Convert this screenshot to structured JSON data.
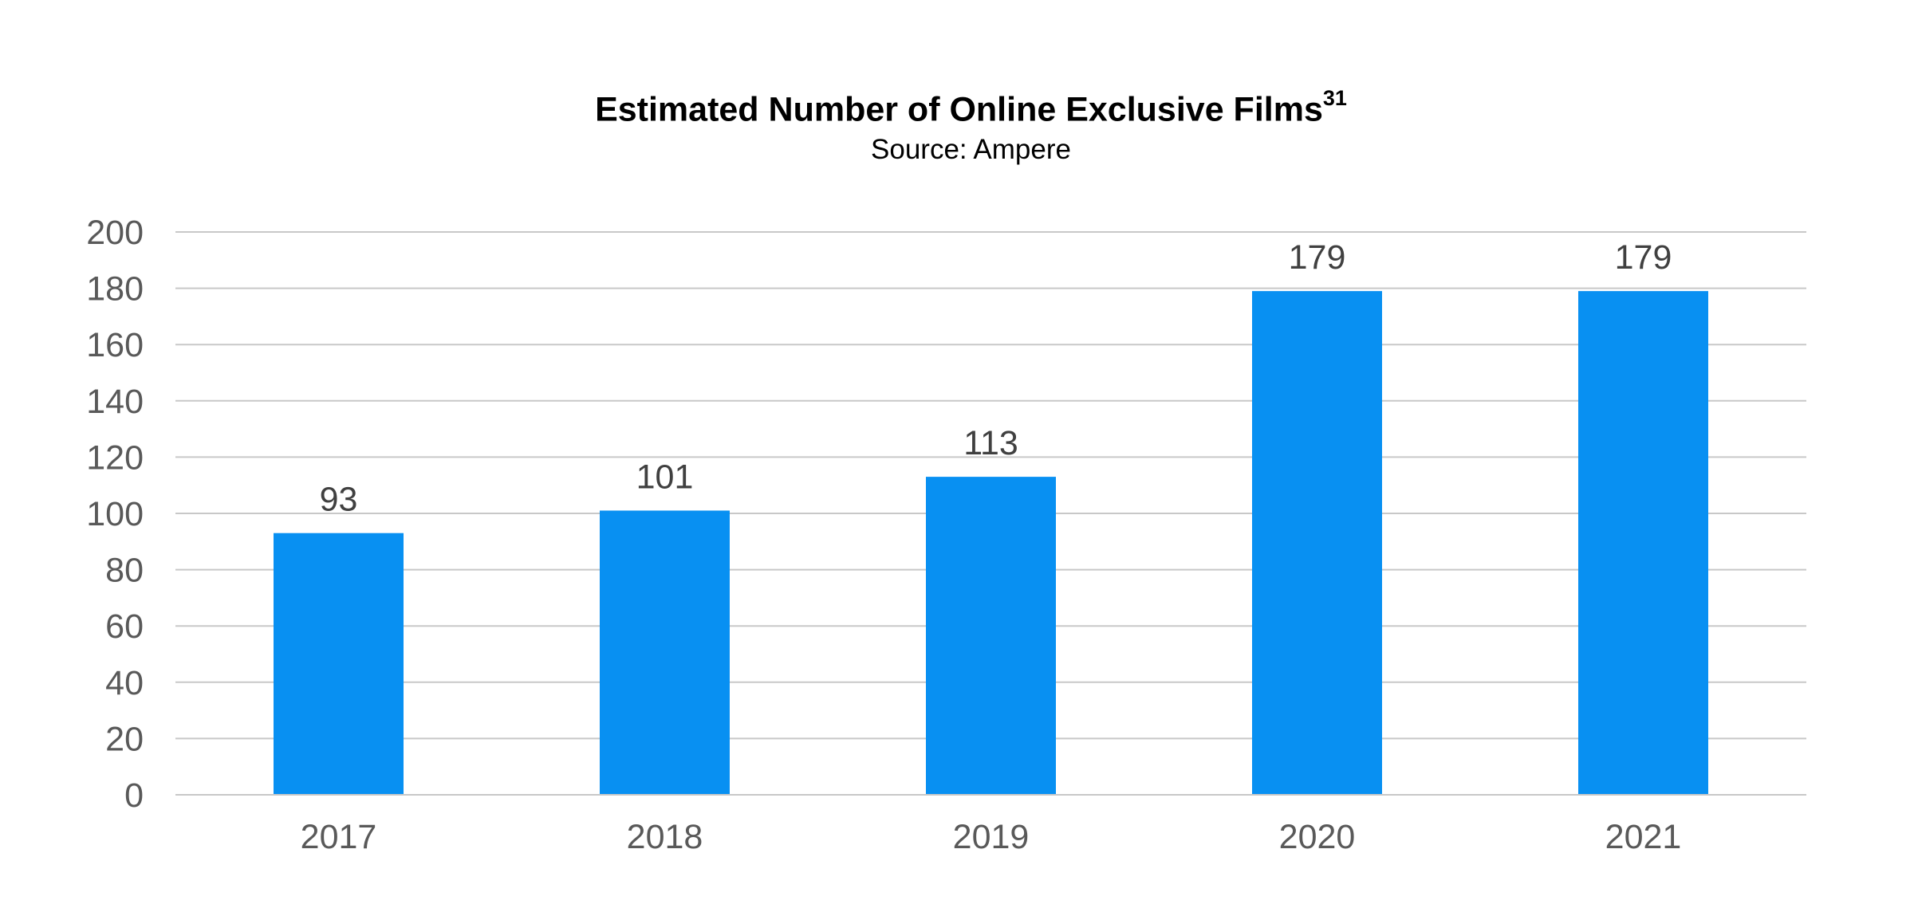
{
  "chart_data": {
    "type": "bar",
    "title": "Estimated Number of Online Exclusive Films",
    "title_superscript": "31",
    "subtitle": "Source: Ampere",
    "categories": [
      "2017",
      "2018",
      "2019",
      "2020",
      "2021"
    ],
    "values": [
      93,
      101,
      113,
      179,
      179
    ],
    "data_labels": [
      "93",
      "101",
      "113",
      "179",
      "179"
    ],
    "y_ticks": [
      "0",
      "20",
      "40",
      "60",
      "80",
      "100",
      "120",
      "140",
      "160",
      "180",
      "200"
    ],
    "ylim": [
      0,
      200
    ],
    "grid": true,
    "legend": "none",
    "bar_color": "#0890F2",
    "grid_color": "#C8C8C8",
    "axis_color": "#C8C8C8"
  }
}
